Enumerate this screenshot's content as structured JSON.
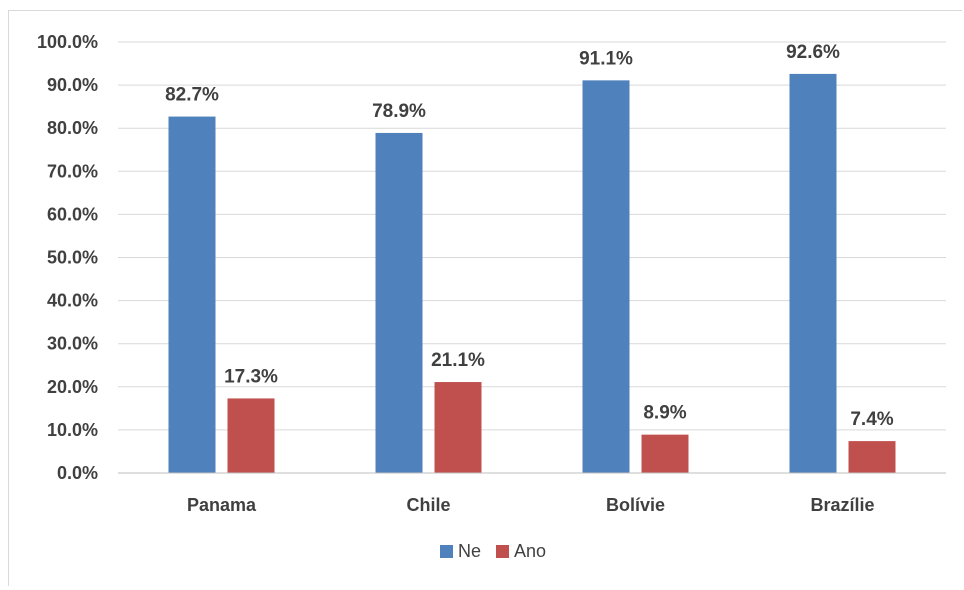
{
  "chart_data": {
    "type": "bar",
    "categories": [
      "Panama",
      "Chile",
      "Bolívie",
      "Brazílie"
    ],
    "series": [
      {
        "name": "Ne",
        "values": [
          82.7,
          78.9,
          91.1,
          92.6
        ],
        "color": "#4f81bd"
      },
      {
        "name": "Ano",
        "values": [
          17.3,
          21.1,
          8.9,
          7.4
        ],
        "color": "#c0504d"
      }
    ],
    "data_labels": [
      [
        "82.7%",
        "78.9%",
        "91.1%",
        "92.6%"
      ],
      [
        "17.3%",
        "21.1%",
        "8.9%",
        "7.4%"
      ]
    ],
    "yticks": [
      "0.0%",
      "10.0%",
      "20.0%",
      "30.0%",
      "40.0%",
      "50.0%",
      "60.0%",
      "70.0%",
      "80.0%",
      "90.0%",
      "100.0%"
    ],
    "ylim": [
      0,
      100
    ],
    "grid": true,
    "legend_position": "bottom",
    "title": "",
    "xlabel": "",
    "ylabel": ""
  }
}
